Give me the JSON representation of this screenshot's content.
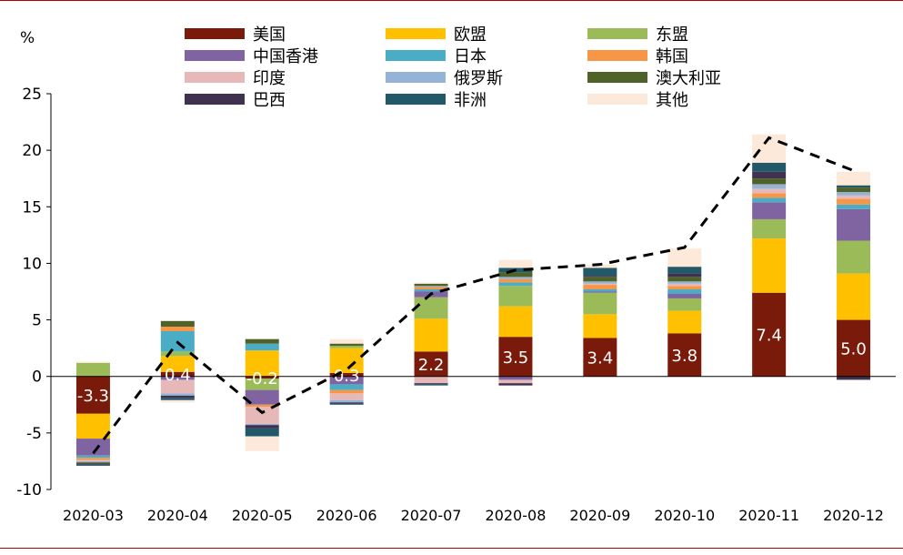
{
  "chart_data": {
    "type": "bar",
    "stacked": true,
    "y_unit": "%",
    "categories": [
      "2020-03",
      "2020-04",
      "2020-05",
      "2020-06",
      "2020-07",
      "2020-08",
      "2020-09",
      "2020-10",
      "2020-11",
      "2020-12"
    ],
    "ylim": [
      -10,
      25
    ],
    "yticks": [
      -10,
      -5,
      0,
      5,
      10,
      15,
      20,
      25
    ],
    "grid": false,
    "legend_position": "top",
    "series": [
      {
        "name": "美国",
        "color": "#7a1a0a",
        "values": [
          -3.3,
          0.4,
          -0.2,
          0.3,
          2.2,
          3.5,
          3.4,
          3.8,
          7.4,
          5.0
        ]
      },
      {
        "name": "欧盟",
        "color": "#ffc000",
        "values": [
          -2.2,
          1.4,
          2.3,
          2.2,
          2.9,
          2.7,
          2.1,
          2.0,
          4.8,
          4.1
        ]
      },
      {
        "name": "东盟",
        "color": "#9bbb59",
        "values": [
          1.2,
          0.4,
          -1.0,
          0.2,
          1.9,
          1.8,
          1.9,
          1.1,
          1.7,
          2.9
        ]
      },
      {
        "name": "中国香港",
        "color": "#8064a2",
        "values": [
          -1.5,
          -0.3,
          -1.3,
          -0.7,
          0.5,
          -0.3,
          0.1,
          0.4,
          1.5,
          2.8
        ]
      },
      {
        "name": "日本",
        "color": "#4bacc6",
        "values": [
          -0.2,
          1.8,
          0.6,
          -0.5,
          0.2,
          0.3,
          0.2,
          0.4,
          0.4,
          0.4
        ]
      },
      {
        "name": "韩国",
        "color": "#f79646",
        "values": [
          -0.2,
          0.4,
          -0.2,
          -0.3,
          0.2,
          0.3,
          0.4,
          0.3,
          0.4,
          0.5
        ]
      },
      {
        "name": "印度",
        "color": "#e6b9b8",
        "values": [
          -0.1,
          -1.2,
          -1.5,
          -0.6,
          -0.6,
          -0.3,
          0.1,
          0.2,
          0.4,
          0.3
        ]
      },
      {
        "name": "俄罗斯",
        "color": "#95b3d7",
        "values": [
          -0.1,
          -0.2,
          -0.1,
          -0.2,
          0.1,
          0.2,
          0.2,
          0.2,
          0.4,
          0.3
        ]
      },
      {
        "name": "澳大利亚",
        "color": "#4f6228",
        "values": [
          -0.1,
          0.5,
          0.4,
          0.2,
          0.2,
          0.4,
          0.4,
          0.4,
          0.5,
          0.4
        ]
      },
      {
        "name": "巴西",
        "color": "#403151",
        "values": [
          -0.1,
          -0.2,
          -0.3,
          -0.1,
          -0.1,
          -0.2,
          0.1,
          0.3,
          0.6,
          -0.3
        ]
      },
      {
        "name": "非洲",
        "color": "#215968",
        "values": [
          -0.1,
          -0.2,
          -0.7,
          -0.1,
          -0.1,
          0.4,
          0.7,
          0.6,
          0.8,
          0.2
        ]
      },
      {
        "name": "其他",
        "color": "#fde9d9",
        "values": [
          0.1,
          -0.2,
          -1.3,
          0.4,
          0.1,
          0.7,
          0.3,
          1.6,
          2.5,
          1.2
        ]
      }
    ],
    "total": {
      "values": [
        -6.8,
        3.0,
        -3.2,
        0.6,
        7.3,
        9.4,
        9.9,
        11.4,
        21.1,
        18.2
      ],
      "color": "#000000"
    },
    "data_labels": [
      "-3.3",
      "0.4",
      "-0.2",
      "0.3",
      "2.2",
      "3.5",
      "3.4",
      "3.8",
      "7.4",
      "5.0"
    ],
    "data_label_colors": [
      "#ffffff",
      "#ffffff",
      "#ffffff",
      "#ffffff",
      "#ffffff",
      "#ffffff",
      "#ffffff",
      "#ffffff",
      "#ffffff",
      "#ffffff"
    ]
  },
  "colors": {
    "frame": "#b00000",
    "axis": "#000000"
  }
}
